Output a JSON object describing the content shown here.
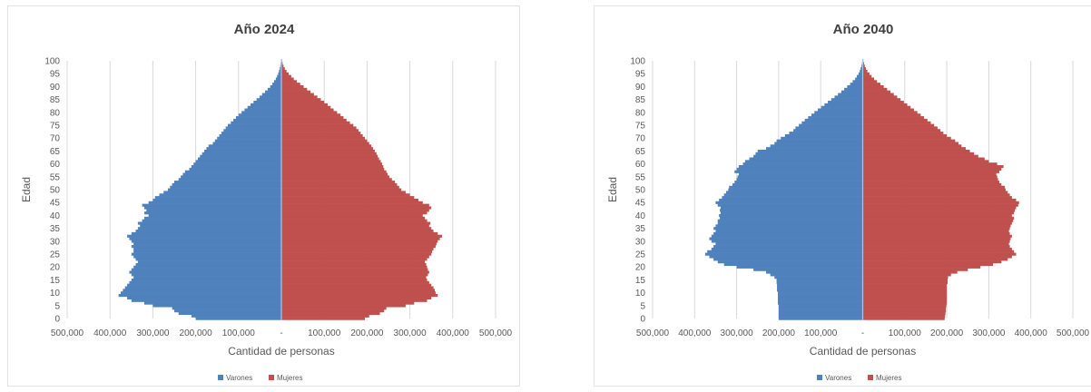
{
  "chart_data": [
    {
      "type": "bar",
      "orientation": "population-pyramid",
      "title": "Año 2024",
      "xlabel": "Cantidad de personas",
      "ylabel": "Edad",
      "x_tick_labels": [
        "500,000",
        "400,000",
        "300,000",
        "200,000",
        "100,000",
        "-",
        "100,000",
        "200,000",
        "300,000",
        "400,000",
        "500,000"
      ],
      "y_tick_labels": [
        "0",
        "5",
        "10",
        "15",
        "20",
        "25",
        "30",
        "35",
        "40",
        "45",
        "50",
        "55",
        "60",
        "65",
        "70",
        "75",
        "80",
        "85",
        "90",
        "95",
        "100"
      ],
      "xlim": [
        -500000,
        500000
      ],
      "ylim": [
        0,
        100
      ],
      "grid": "vertical",
      "legend_position": "bottom",
      "ages_step": 1,
      "series": [
        {
          "name": "Varones",
          "color": "#4f81bd",
          "values": [
            200000,
            210000,
            240000,
            250000,
            255000,
            300000,
            320000,
            350000,
            360000,
            380000,
            375000,
            370000,
            365000,
            360000,
            355000,
            350000,
            345000,
            350000,
            355000,
            350000,
            345000,
            340000,
            335000,
            340000,
            345000,
            350000,
            345000,
            345000,
            350000,
            345000,
            350000,
            355000,
            360000,
            350000,
            340000,
            335000,
            330000,
            335000,
            325000,
            320000,
            310000,
            320000,
            315000,
            320000,
            325000,
            310000,
            300000,
            295000,
            285000,
            275000,
            265000,
            260000,
            255000,
            250000,
            240000,
            235000,
            230000,
            225000,
            215000,
            210000,
            205000,
            200000,
            195000,
            190000,
            185000,
            180000,
            175000,
            170000,
            160000,
            155000,
            150000,
            145000,
            140000,
            135000,
            130000,
            125000,
            118000,
            112000,
            106000,
            100000,
            93000,
            86000,
            79000,
            72000,
            65000,
            58000,
            51000,
            45000,
            38000,
            32000,
            26000,
            21000,
            17000,
            13000,
            10000,
            7500,
            5500,
            3800,
            2500,
            1500,
            800
          ]
        },
        {
          "name": "Mujeres",
          "color": "#c0504d",
          "values": [
            195000,
            205000,
            230000,
            240000,
            245000,
            290000,
            310000,
            340000,
            350000,
            365000,
            360000,
            358000,
            355000,
            350000,
            345000,
            340000,
            338000,
            342000,
            345000,
            342000,
            340000,
            338000,
            335000,
            340000,
            345000,
            350000,
            352000,
            355000,
            360000,
            362000,
            365000,
            370000,
            375000,
            365000,
            355000,
            350000,
            345000,
            348000,
            340000,
            335000,
            330000,
            340000,
            345000,
            350000,
            345000,
            330000,
            320000,
            310000,
            300000,
            290000,
            280000,
            275000,
            270000,
            265000,
            258000,
            252000,
            248000,
            245000,
            240000,
            238000,
            235000,
            232000,
            228000,
            225000,
            222000,
            218000,
            214000,
            210000,
            205000,
            200000,
            195000,
            190000,
            185000,
            180000,
            175000,
            168000,
            160000,
            152000,
            145000,
            138000,
            130000,
            122000,
            115000,
            108000,
            100000,
            92000,
            84000,
            76000,
            68000,
            60000,
            52000,
            44000,
            36000,
            29000,
            23000,
            17000,
            12000,
            8000,
            5000,
            3000,
            1500
          ]
        }
      ]
    },
    {
      "type": "bar",
      "orientation": "population-pyramid",
      "title": "Año 2040",
      "xlabel": "Cantidad de personas",
      "ylabel": "Edad",
      "x_tick_labels": [
        "500,000",
        "400,000",
        "300,000",
        "200,000",
        "100,000",
        "-",
        "100,000",
        "200,000",
        "300,000",
        "400,000",
        "500,000"
      ],
      "y_tick_labels": [
        "0",
        "5",
        "10",
        "15",
        "20",
        "25",
        "30",
        "35",
        "40",
        "45",
        "50",
        "55",
        "60",
        "65",
        "70",
        "75",
        "80",
        "85",
        "90",
        "95",
        "100"
      ],
      "xlim": [
        -500000,
        500000
      ],
      "ylim": [
        0,
        100
      ],
      "grid": "vertical",
      "legend_position": "bottom",
      "ages_step": 1,
      "series": [
        {
          "name": "Varones",
          "color": "#4f81bd",
          "values": [
            200000,
            200000,
            200000,
            200000,
            200000,
            200000,
            202000,
            202000,
            202000,
            202000,
            202000,
            204000,
            204000,
            204000,
            205000,
            205000,
            210000,
            220000,
            230000,
            260000,
            300000,
            330000,
            345000,
            355000,
            365000,
            375000,
            370000,
            360000,
            355000,
            350000,
            360000,
            365000,
            360000,
            355000,
            350000,
            355000,
            350000,
            345000,
            345000,
            340000,
            342000,
            338000,
            340000,
            338000,
            345000,
            350000,
            342000,
            335000,
            330000,
            325000,
            320000,
            318000,
            310000,
            305000,
            300000,
            298000,
            295000,
            305000,
            300000,
            295000,
            285000,
            280000,
            270000,
            260000,
            255000,
            250000,
            230000,
            220000,
            210000,
            205000,
            195000,
            185000,
            175000,
            165000,
            160000,
            152000,
            145000,
            138000,
            130000,
            122000,
            115000,
            107000,
            99000,
            91000,
            83000,
            75000,
            67000,
            59000,
            51000,
            44000,
            37000,
            30000,
            24000,
            18000,
            14000,
            10000,
            7000,
            5000,
            3000,
            1800,
            900
          ]
        },
        {
          "name": "Mujeres",
          "color": "#c0504d",
          "values": [
            195000,
            196000,
            197000,
            198000,
            198000,
            199000,
            200000,
            200000,
            200000,
            200000,
            200000,
            200000,
            200000,
            200000,
            202000,
            202000,
            203000,
            210000,
            225000,
            250000,
            280000,
            310000,
            330000,
            345000,
            355000,
            365000,
            360000,
            355000,
            350000,
            348000,
            350000,
            352000,
            355000,
            350000,
            348000,
            350000,
            352000,
            355000,
            358000,
            360000,
            355000,
            360000,
            362000,
            365000,
            370000,
            372000,
            365000,
            355000,
            350000,
            345000,
            340000,
            338000,
            330000,
            325000,
            322000,
            320000,
            318000,
            325000,
            330000,
            335000,
            320000,
            300000,
            290000,
            275000,
            265000,
            255000,
            245000,
            235000,
            228000,
            220000,
            210000,
            200000,
            192000,
            185000,
            178000,
            170000,
            162000,
            154000,
            146000,
            138000,
            130000,
            122000,
            114000,
            106000,
            98000,
            90000,
            82000,
            74000,
            66000,
            58000,
            50000,
            42000,
            34000,
            27000,
            21000,
            16000,
            11000,
            7500,
            5000,
            3000,
            1500
          ]
        }
      ]
    }
  ]
}
